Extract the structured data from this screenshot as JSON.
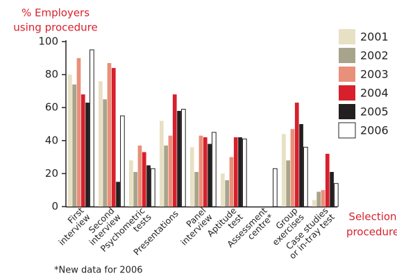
{
  "chart_data": {
    "type": "bar",
    "y_label": [
      "% Employers",
      "using procedure"
    ],
    "x_label": [
      "Selection",
      "procedure"
    ],
    "footnote": "*New data for 2006",
    "categories": [
      [
        "First",
        "interview"
      ],
      [
        "Second",
        "interview"
      ],
      [
        "Psychometric",
        "tests"
      ],
      [
        "Presentations"
      ],
      [
        "Panel",
        "interview"
      ],
      [
        "Aptitude",
        "test"
      ],
      [
        "Assessment",
        "centre*"
      ],
      [
        "Group",
        "exercises"
      ],
      [
        "Case studies",
        "or in-tray test"
      ]
    ],
    "series": [
      {
        "name": "2001",
        "color": "#e8e0c4",
        "values": [
          80,
          76,
          28,
          52,
          36,
          20,
          null,
          44,
          4
        ]
      },
      {
        "name": "2002",
        "color": "#a8a48c",
        "values": [
          74,
          65,
          21,
          37,
          21,
          16,
          null,
          28,
          9
        ]
      },
      {
        "name": "2003",
        "color": "#e8907a",
        "values": [
          90,
          87,
          37,
          43,
          43,
          30,
          null,
          47,
          10
        ]
      },
      {
        "name": "2004",
        "color": "#d8202c",
        "values": [
          68,
          84,
          33,
          68,
          42,
          42,
          null,
          63,
          32
        ]
      },
      {
        "name": "2005",
        "color": "#231f20",
        "values": [
          63,
          15,
          25,
          58,
          38,
          42,
          null,
          50,
          21
        ]
      },
      {
        "name": "2006",
        "color": "#ffffff",
        "values": [
          95,
          55,
          23,
          59,
          45,
          41,
          23,
          36,
          14
        ]
      }
    ],
    "ylim": [
      0,
      100
    ],
    "yticks": [
      0,
      20,
      40,
      60,
      80,
      100
    ],
    "legend": "right"
  }
}
